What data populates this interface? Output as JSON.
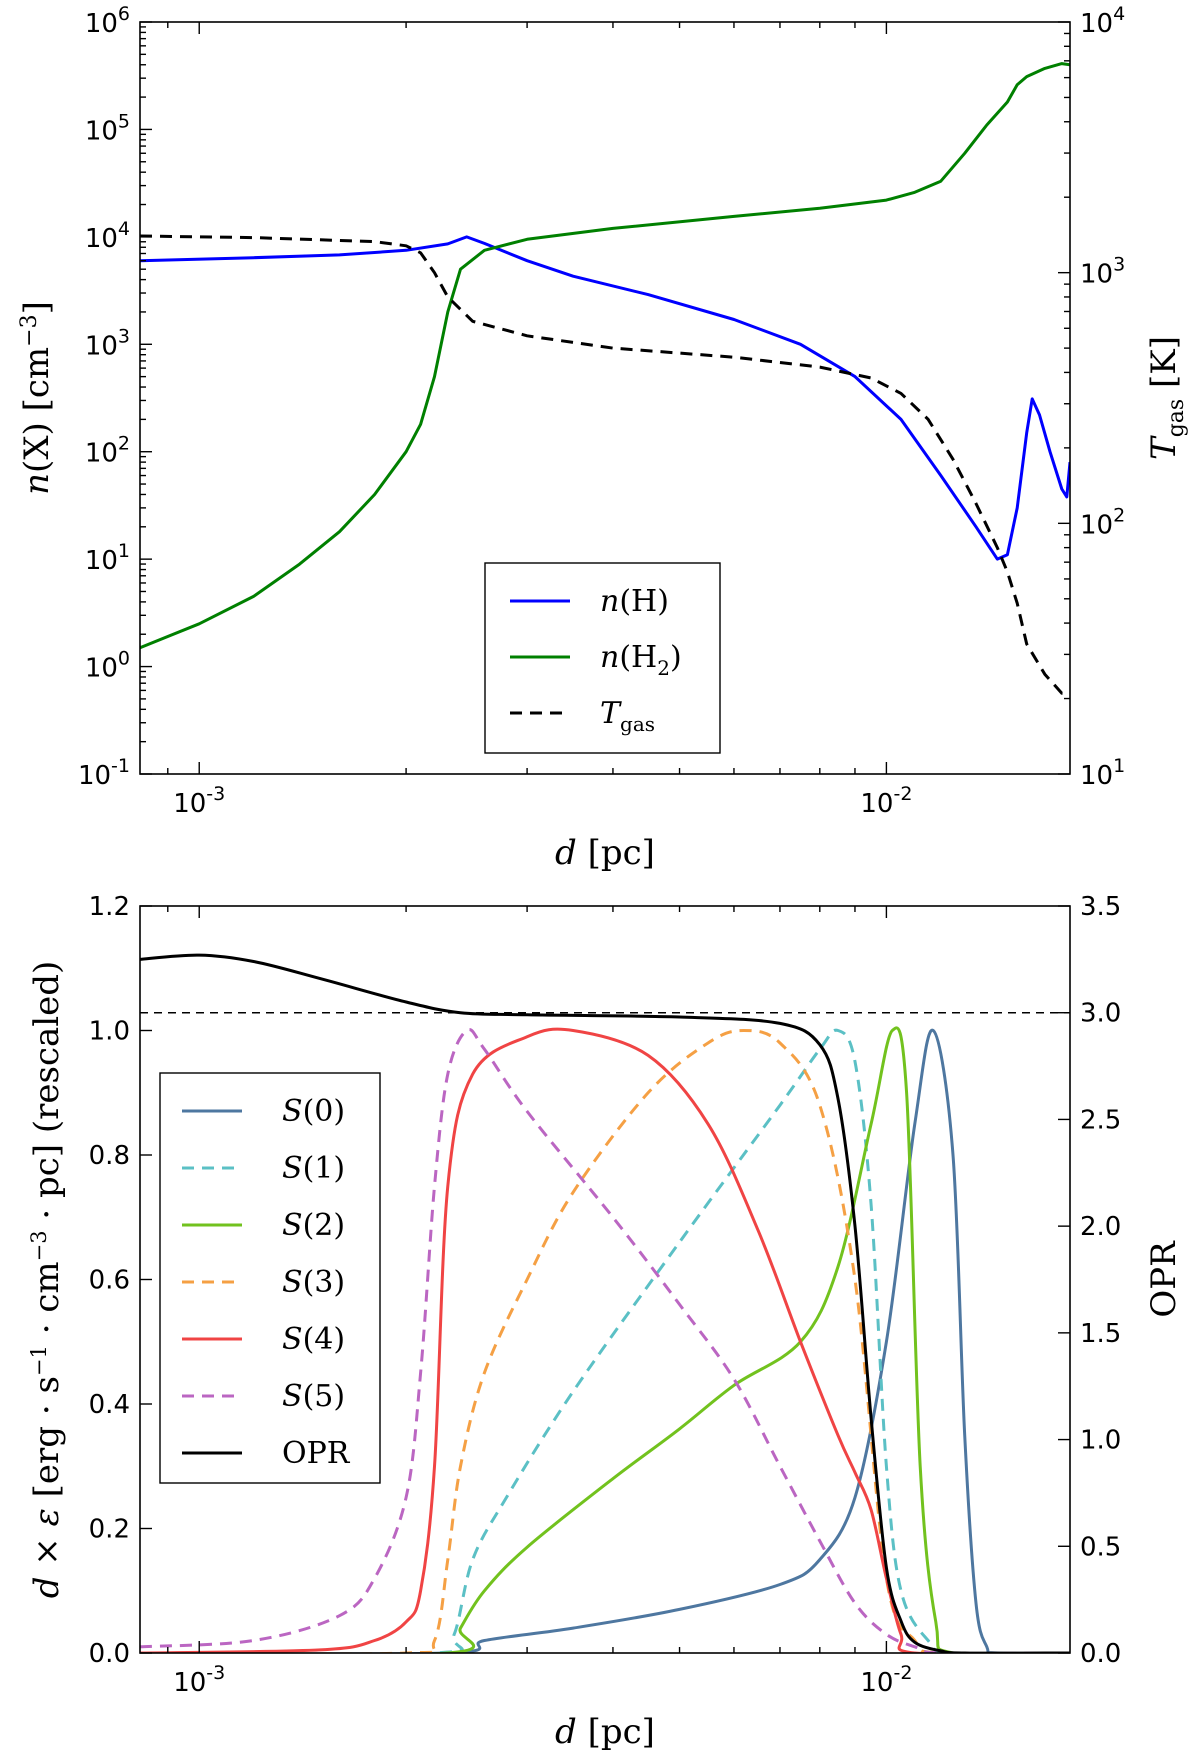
{
  "chart_data": [
    {
      "type": "line",
      "title": "",
      "xscale": "log",
      "xlabel": "d [pc]",
      "xlim": [
        0.00082,
        0.0185
      ],
      "x_tick_labels": [
        {
          "value": 0.001,
          "base": "10",
          "exp": "-3"
        },
        {
          "value": 0.01,
          "base": "10",
          "exp": "-2"
        }
      ],
      "ylabel_left": "n(X) [cm^-3]",
      "yscale_left": "log",
      "ylim_left": [
        0.1,
        1000000
      ],
      "left_tick_labels": [
        {
          "value": 0.1,
          "base": "10",
          "exp": "-1"
        },
        {
          "value": 1,
          "base": "10",
          "exp": "0"
        },
        {
          "value": 10,
          "base": "10",
          "exp": "1"
        },
        {
          "value": 100,
          "base": "10",
          "exp": "2"
        },
        {
          "value": 1000,
          "base": "10",
          "exp": "3"
        },
        {
          "value": 10000,
          "base": "10",
          "exp": "4"
        },
        {
          "value": 100000,
          "base": "10",
          "exp": "5"
        },
        {
          "value": 1000000,
          "base": "10",
          "exp": "6"
        }
      ],
      "ylabel_right": "T_gas [K]",
      "yscale_right": "log",
      "ylim_right": [
        10,
        10000
      ],
      "right_tick_labels": [
        {
          "value": 10,
          "base": "10",
          "exp": "1"
        },
        {
          "value": 100,
          "base": "10",
          "exp": "2"
        },
        {
          "value": 1000,
          "base": "10",
          "exp": "3"
        },
        {
          "value": 10000,
          "base": "10",
          "exp": "4"
        }
      ],
      "legend_position": "bottom-center",
      "series": [
        {
          "name": "n(H)",
          "legend_label": "n(H)",
          "axis": "left",
          "color": "#0000ff",
          "dash": "solid",
          "points": [
            [
              0.00082,
              6000
            ],
            [
              0.0012,
              6400
            ],
            [
              0.0016,
              6800
            ],
            [
              0.002,
              7500
            ],
            [
              0.0023,
              8600
            ],
            [
              0.00245,
              10000
            ],
            [
              0.0026,
              8700
            ],
            [
              0.003,
              6000
            ],
            [
              0.0035,
              4300
            ],
            [
              0.0045,
              2900
            ],
            [
              0.006,
              1700
            ],
            [
              0.0075,
              1000
            ],
            [
              0.009,
              500
            ],
            [
              0.0105,
              200
            ],
            [
              0.012,
              60
            ],
            [
              0.0135,
              20
            ],
            [
              0.0145,
              10
            ],
            [
              0.015,
              11
            ],
            [
              0.0155,
              30
            ],
            [
              0.016,
              150
            ],
            [
              0.0163,
              310
            ],
            [
              0.0167,
              220
            ],
            [
              0.0173,
              100
            ],
            [
              0.018,
              45
            ],
            [
              0.0183,
              38
            ],
            [
              0.0185,
              80
            ]
          ]
        },
        {
          "name": "n(H2)",
          "legend_label": "n(H₂)",
          "axis": "left",
          "color": "#008000",
          "dash": "solid",
          "points": [
            [
              0.00082,
              1.5
            ],
            [
              0.001,
              2.5
            ],
            [
              0.0012,
              4.5
            ],
            [
              0.0014,
              9
            ],
            [
              0.0016,
              18
            ],
            [
              0.0018,
              40
            ],
            [
              0.002,
              100
            ],
            [
              0.0021,
              180
            ],
            [
              0.0022,
              500
            ],
            [
              0.0023,
              2000
            ],
            [
              0.0024,
              5000
            ],
            [
              0.0026,
              7500
            ],
            [
              0.003,
              9500
            ],
            [
              0.004,
              12000
            ],
            [
              0.006,
              15500
            ],
            [
              0.008,
              18500
            ],
            [
              0.01,
              22000
            ],
            [
              0.011,
              26000
            ],
            [
              0.012,
              33000
            ],
            [
              0.013,
              60000
            ],
            [
              0.014,
              110000
            ],
            [
              0.015,
              180000
            ],
            [
              0.0155,
              260000
            ],
            [
              0.016,
              310000
            ],
            [
              0.017,
              370000
            ],
            [
              0.018,
              410000
            ],
            [
              0.0185,
              400000
            ]
          ]
        },
        {
          "name": "T_gas",
          "legend_label": "Tgas",
          "axis": "right",
          "color": "#000000",
          "dash": "dashed",
          "points": [
            [
              0.00082,
              1400
            ],
            [
              0.0012,
              1380
            ],
            [
              0.0018,
              1330
            ],
            [
              0.002,
              1280
            ],
            [
              0.0021,
              1200
            ],
            [
              0.0022,
              1000
            ],
            [
              0.0023,
              800
            ],
            [
              0.0025,
              640
            ],
            [
              0.003,
              560
            ],
            [
              0.004,
              500
            ],
            [
              0.006,
              460
            ],
            [
              0.008,
              420
            ],
            [
              0.0095,
              380
            ],
            [
              0.0105,
              330
            ],
            [
              0.0115,
              260
            ],
            [
              0.0125,
              180
            ],
            [
              0.0135,
              120
            ],
            [
              0.0145,
              80
            ],
            [
              0.015,
              64
            ],
            [
              0.0155,
              48
            ],
            [
              0.016,
              33
            ],
            [
              0.017,
              25
            ],
            [
              0.018,
              21
            ],
            [
              0.0185,
              21
            ]
          ]
        }
      ]
    },
    {
      "type": "line",
      "title": "",
      "xscale": "log",
      "xlabel": "d [pc]",
      "xlim": [
        0.00082,
        0.0185
      ],
      "x_tick_labels": [
        {
          "value": 0.001,
          "base": "10",
          "exp": "-3"
        },
        {
          "value": 0.01,
          "base": "10",
          "exp": "-2"
        }
      ],
      "ylabel_left": "d × ε [erg·s^-1·cm^-3·pc] (rescaled)",
      "ylim_left": [
        0.0,
        1.2
      ],
      "left_ticks": [
        "0.0",
        "0.2",
        "0.4",
        "0.6",
        "0.8",
        "1.0",
        "1.2"
      ],
      "ylabel_right": "OPR",
      "ylim_right": [
        0.0,
        3.5
      ],
      "right_ticks": [
        "0.0",
        "0.5",
        "1.0",
        "1.5",
        "2.0",
        "2.5",
        "3.0",
        "3.5"
      ],
      "reference_line": {
        "axis": "right",
        "value": 3.0,
        "style": "dashed",
        "color": "#000000"
      },
      "legend_position": "center-left",
      "series": [
        {
          "name": "S(0)",
          "axis": "left",
          "color": "#4e77a0",
          "dash": "solid",
          "points": [
            [
              0.00082,
              0
            ],
            [
              0.0023,
              0
            ],
            [
              0.0026,
              0.02
            ],
            [
              0.0035,
              0.04
            ],
            [
              0.005,
              0.07
            ],
            [
              0.007,
              0.11
            ],
            [
              0.008,
              0.15
            ],
            [
              0.009,
              0.25
            ],
            [
              0.01,
              0.5
            ],
            [
              0.011,
              0.85
            ],
            [
              0.0117,
              1.0
            ],
            [
              0.0125,
              0.8
            ],
            [
              0.013,
              0.35
            ],
            [
              0.0135,
              0.08
            ],
            [
              0.014,
              0.01
            ],
            [
              0.0145,
              0
            ],
            [
              0.0185,
              0
            ]
          ]
        },
        {
          "name": "S(1)",
          "axis": "left",
          "color": "#5bc0c5",
          "dash": "dashed",
          "points": [
            [
              0.00082,
              0
            ],
            [
              0.0022,
              0
            ],
            [
              0.00235,
              0.03
            ],
            [
              0.0025,
              0.15
            ],
            [
              0.0028,
              0.25
            ],
            [
              0.0035,
              0.42
            ],
            [
              0.005,
              0.66
            ],
            [
              0.007,
              0.88
            ],
            [
              0.008,
              0.97
            ],
            [
              0.0085,
              1.0
            ],
            [
              0.009,
              0.95
            ],
            [
              0.0095,
              0.72
            ],
            [
              0.01,
              0.3
            ],
            [
              0.0105,
              0.1
            ],
            [
              0.0115,
              0.02
            ],
            [
              0.0125,
              0
            ],
            [
              0.0185,
              0
            ]
          ]
        },
        {
          "name": "S(2)",
          "axis": "left",
          "color": "#72c21e",
          "dash": "solid",
          "points": [
            [
              0.00082,
              0
            ],
            [
              0.0023,
              0
            ],
            [
              0.0024,
              0.04
            ],
            [
              0.0026,
              0.1
            ],
            [
              0.003,
              0.17
            ],
            [
              0.004,
              0.28
            ],
            [
              0.005,
              0.36
            ],
            [
              0.006,
              0.43
            ],
            [
              0.0075,
              0.5
            ],
            [
              0.0085,
              0.62
            ],
            [
              0.0095,
              0.85
            ],
            [
              0.0102,
              1.0
            ],
            [
              0.0107,
              0.9
            ],
            [
              0.0112,
              0.3
            ],
            [
              0.0118,
              0.05
            ],
            [
              0.0125,
              0
            ],
            [
              0.0185,
              0
            ]
          ]
        },
        {
          "name": "S(3)",
          "axis": "left",
          "color": "#f5a044",
          "dash": "dashed",
          "points": [
            [
              0.00082,
              0
            ],
            [
              0.002,
              0
            ],
            [
              0.0022,
              0.02
            ],
            [
              0.0023,
              0.15
            ],
            [
              0.0024,
              0.3
            ],
            [
              0.0026,
              0.45
            ],
            [
              0.003,
              0.6
            ],
            [
              0.0035,
              0.74
            ],
            [
              0.0045,
              0.9
            ],
            [
              0.0055,
              0.98
            ],
            [
              0.0062,
              1.0
            ],
            [
              0.007,
              0.98
            ],
            [
              0.008,
              0.88
            ],
            [
              0.009,
              0.6
            ],
            [
              0.01,
              0.12
            ],
            [
              0.011,
              0.02
            ],
            [
              0.012,
              0
            ],
            [
              0.0185,
              0
            ]
          ]
        },
        {
          "name": "S(4)",
          "axis": "left",
          "color": "#f04444",
          "dash": "solid",
          "points": [
            [
              0.00082,
              0
            ],
            [
              0.0015,
              0.005
            ],
            [
              0.0018,
              0.02
            ],
            [
              0.002,
              0.05
            ],
            [
              0.0021,
              0.1
            ],
            [
              0.0022,
              0.3
            ],
            [
              0.0023,
              0.75
            ],
            [
              0.0025,
              0.93
            ],
            [
              0.003,
              0.99
            ],
            [
              0.0035,
              1.0
            ],
            [
              0.0045,
              0.96
            ],
            [
              0.0055,
              0.85
            ],
            [
              0.0065,
              0.68
            ],
            [
              0.0075,
              0.5
            ],
            [
              0.0085,
              0.35
            ],
            [
              0.009,
              0.29
            ],
            [
              0.0095,
              0.23
            ],
            [
              0.01,
              0.12
            ],
            [
              0.0105,
              0.03
            ],
            [
              0.011,
              0
            ],
            [
              0.0185,
              0
            ]
          ]
        },
        {
          "name": "S(5)",
          "axis": "left",
          "color": "#bb66c2",
          "dash": "dashed",
          "points": [
            [
              0.00082,
              0.01
            ],
            [
              0.0012,
              0.02
            ],
            [
              0.0016,
              0.06
            ],
            [
              0.0018,
              0.12
            ],
            [
              0.002,
              0.25
            ],
            [
              0.0021,
              0.45
            ],
            [
              0.0022,
              0.75
            ],
            [
              0.0023,
              0.93
            ],
            [
              0.00245,
              1.0
            ],
            [
              0.0026,
              0.97
            ],
            [
              0.003,
              0.87
            ],
            [
              0.004,
              0.7
            ],
            [
              0.005,
              0.56
            ],
            [
              0.006,
              0.44
            ],
            [
              0.007,
              0.3
            ],
            [
              0.008,
              0.18
            ],
            [
              0.009,
              0.08
            ],
            [
              0.01,
              0.03
            ],
            [
              0.011,
              0.01
            ],
            [
              0.012,
              0
            ],
            [
              0.0185,
              0
            ]
          ]
        },
        {
          "name": "OPR",
          "axis": "right",
          "color": "#000000",
          "dash": "solid",
          "points": [
            [
              0.00082,
              3.25
            ],
            [
              0.001,
              3.27
            ],
            [
              0.0012,
              3.24
            ],
            [
              0.0015,
              3.16
            ],
            [
              0.002,
              3.05
            ],
            [
              0.0024,
              3.0
            ],
            [
              0.003,
              2.99
            ],
            [
              0.005,
              2.98
            ],
            [
              0.007,
              2.95
            ],
            [
              0.008,
              2.85
            ],
            [
              0.0085,
              2.6
            ],
            [
              0.009,
              2.0
            ],
            [
              0.0095,
              1.1
            ],
            [
              0.01,
              0.4
            ],
            [
              0.0105,
              0.15
            ],
            [
              0.011,
              0.05
            ],
            [
              0.012,
              0.01
            ],
            [
              0.013,
              0
            ],
            [
              0.0185,
              0
            ]
          ]
        }
      ]
    }
  ]
}
